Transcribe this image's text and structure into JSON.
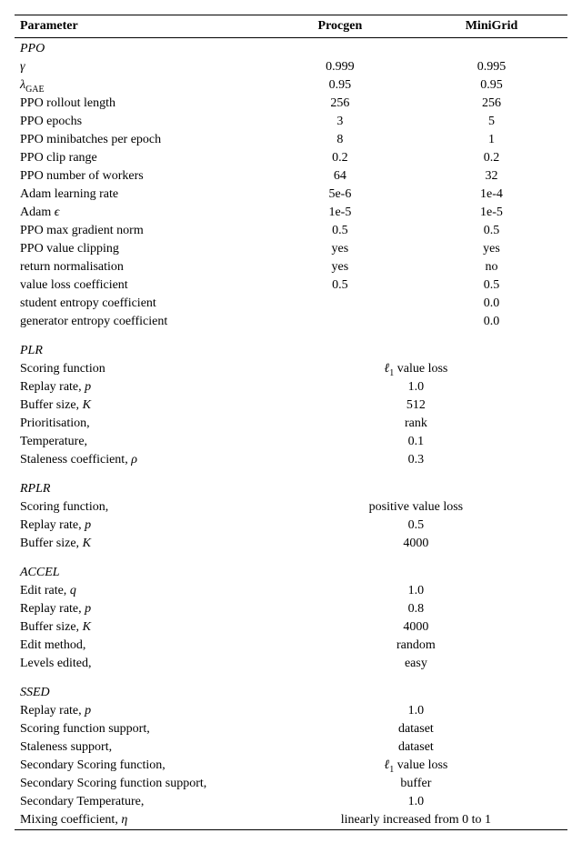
{
  "background_color": "#ffffff",
  "text_color": "#000000",
  "rule_color": "#000000",
  "font_family": "Times New Roman, serif",
  "body_fontsize_pt": 10.5,
  "header": {
    "param": "Parameter",
    "col1": "Procgen",
    "col2": "MiniGrid"
  },
  "sections": [
    {
      "title": "PPO",
      "rows": [
        {
          "param_html": "<span style=\"font-style:italic\">γ</span>",
          "c1": "0.999",
          "c2": "0.995"
        },
        {
          "param_html": "<span style=\"font-style:italic\">λ</span><span class=\"sub\">GAE</span>",
          "c1": "0.95",
          "c2": "0.95"
        },
        {
          "param": "PPO rollout length",
          "c1": "256",
          "c2": "256"
        },
        {
          "param": "PPO epochs",
          "c1": "3",
          "c2": "5"
        },
        {
          "param": "PPO minibatches per epoch",
          "c1": "8",
          "c2": "1"
        },
        {
          "param": "PPO clip range",
          "c1": "0.2",
          "c2": "0.2"
        },
        {
          "param": "PPO number of workers",
          "c1": "64",
          "c2": "32"
        },
        {
          "param": "Adam learning rate",
          "c1": "5e-6",
          "c2": "1e-4"
        },
        {
          "param_html": "Adam <span style=\"font-style:italic\">ϵ</span>",
          "c1": "1e-5",
          "c2": "1e-5"
        },
        {
          "param": "PPO max gradient norm",
          "c1": "0.5",
          "c2": "0.5"
        },
        {
          "param": "PPO value clipping",
          "c1": "yes",
          "c2": "yes"
        },
        {
          "param": "return normalisation",
          "c1": "yes",
          "c2": "no"
        },
        {
          "param": "value loss coefficient",
          "c1": "0.5",
          "c2": "0.5"
        },
        {
          "param": "student entropy coefficient",
          "c1": "",
          "c2": "0.0"
        },
        {
          "param": "generator entropy coefficient",
          "c1": "",
          "c2": "0.0"
        }
      ]
    },
    {
      "title": "PLR",
      "rows": [
        {
          "param": "Scoring function",
          "span_html": "<span style=\"font-style:italic\">ℓ</span><span class=\"sub\">1</span> value loss"
        },
        {
          "param_html": "Replay rate, <span style=\"font-style:italic\">p</span>",
          "span": "1.0"
        },
        {
          "param_html": "Buffer size, <span style=\"font-style:italic\">K</span>",
          "span": "512"
        },
        {
          "param": "Prioritisation,",
          "span": "rank"
        },
        {
          "param": "Temperature,",
          "span": "0.1"
        },
        {
          "param_html": "Staleness coefficient, <span style=\"font-style:italic\">ρ</span>",
          "span": "0.3"
        }
      ]
    },
    {
      "title": "RPLR",
      "rows": [
        {
          "param": "Scoring function,",
          "span": "positive value loss"
        },
        {
          "param_html": "Replay rate, <span style=\"font-style:italic\">p</span>",
          "span": "0.5"
        },
        {
          "param_html": "Buffer size, <span style=\"font-style:italic\">K</span>",
          "span": "4000"
        }
      ]
    },
    {
      "title": "ACCEL",
      "rows": [
        {
          "param_html": "Edit rate, <span style=\"font-style:italic\">q</span>",
          "span": "1.0"
        },
        {
          "param_html": "Replay rate, <span style=\"font-style:italic\">p</span>",
          "span": "0.8"
        },
        {
          "param_html": "Buffer size, <span style=\"font-style:italic\">K</span>",
          "span": "4000"
        },
        {
          "param": "Edit method,",
          "span": "random"
        },
        {
          "param": "Levels edited,",
          "span": "easy"
        }
      ]
    },
    {
      "title": "SSED",
      "rows": [
        {
          "param_html": "Replay rate, <span style=\"font-style:italic\">p</span>",
          "span": "1.0"
        },
        {
          "param": "Scoring function support,",
          "span": "dataset"
        },
        {
          "param": "Staleness support,",
          "span": "dataset"
        },
        {
          "param": "Secondary Scoring function,",
          "span_html": "<span style=\"font-style:italic\">ℓ</span><span class=\"sub\">1</span> value loss"
        },
        {
          "param": "Secondary Scoring function support,",
          "span": "buffer"
        },
        {
          "param": "Secondary Temperature,",
          "span": "1.0"
        },
        {
          "param_html": "Mixing coefficient, <span style=\"font-style:italic\">η</span>",
          "span": "linearly increased from 0 to 1"
        }
      ]
    }
  ]
}
